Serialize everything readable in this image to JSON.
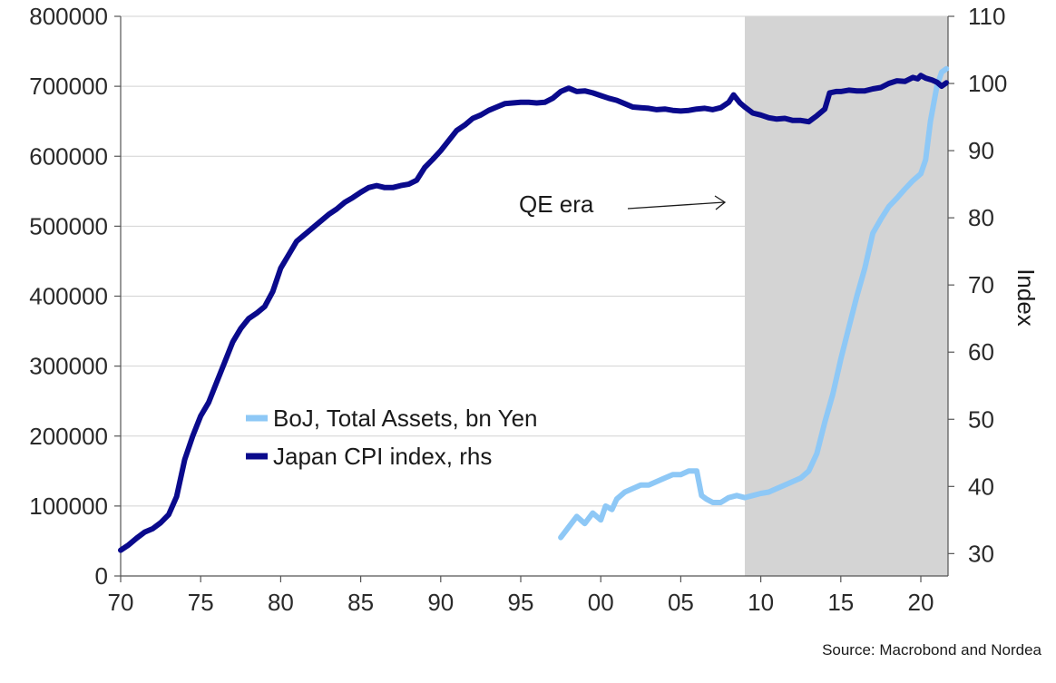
{
  "chart_data": {
    "type": "line",
    "title": "",
    "xlabel": "",
    "ylabel_left": "",
    "ylabel_right": "Index",
    "xlim": [
      1970,
      2021.7
    ],
    "ylim_left": [
      0,
      800000
    ],
    "ylim_right": [
      26.67,
      110
    ],
    "x_ticks": [
      1970,
      1975,
      1980,
      1985,
      1990,
      1995,
      2000,
      2005,
      2010,
      2015,
      2020
    ],
    "x_tick_labels": [
      "70",
      "75",
      "80",
      "85",
      "90",
      "95",
      "00",
      "05",
      "10",
      "15",
      "20"
    ],
    "y_left_ticks": [
      0,
      100000,
      200000,
      300000,
      400000,
      500000,
      600000,
      700000,
      800000
    ],
    "y_left_tick_labels": [
      "0",
      "100000",
      "200000",
      "300000",
      "400000",
      "500000",
      "600000",
      "700000",
      "800000"
    ],
    "y_right_ticks": [
      30,
      40,
      50,
      60,
      70,
      80,
      90,
      100,
      110
    ],
    "y_right_tick_labels": [
      "30",
      "40",
      "50",
      "60",
      "70",
      "80",
      "90",
      "100",
      "110"
    ],
    "grid": true,
    "legend_position": "center-left",
    "shaded_region": {
      "x": [
        2009,
        2021.7
      ],
      "color": "#d4d4d4"
    },
    "annotations": [
      {
        "text": "QE era",
        "arrow_to": "shaded_region_start"
      }
    ],
    "series": [
      {
        "name": "BoJ, Total Assets, bn Yen",
        "axis": "left",
        "color": "#8ec8f6",
        "x": [
          1997.5,
          1998,
          1998.5,
          1999,
          1999.5,
          2000,
          2000.3,
          2000.7,
          2001,
          2001.5,
          2002,
          2002.5,
          2003,
          2003.5,
          2004,
          2004.5,
          2005,
          2005.5,
          2006,
          2006.3,
          2006.6,
          2007,
          2007.5,
          2008,
          2008.5,
          2009,
          2009.5,
          2010,
          2010.5,
          2011,
          2011.5,
          2012,
          2012.5,
          2013,
          2013.5,
          2014,
          2014.5,
          2015,
          2015.5,
          2016,
          2016.5,
          2017,
          2017.5,
          2018,
          2018.5,
          2019,
          2019.5,
          2020,
          2020.3,
          2020.6,
          2021,
          2021.3,
          2021.6
        ],
        "values": [
          55000,
          70000,
          85000,
          75000,
          90000,
          80000,
          100000,
          95000,
          110000,
          120000,
          125000,
          130000,
          130000,
          135000,
          140000,
          145000,
          145000,
          150000,
          150000,
          115000,
          110000,
          105000,
          105000,
          112000,
          115000,
          112000,
          115000,
          118000,
          120000,
          125000,
          130000,
          135000,
          140000,
          150000,
          175000,
          220000,
          260000,
          310000,
          355000,
          400000,
          440000,
          490000,
          510000,
          528000,
          540000,
          553000,
          565000,
          575000,
          595000,
          650000,
          700000,
          720000,
          725000
        ]
      },
      {
        "name": "Japan CPI index, rhs",
        "axis": "right",
        "color": "#0a0a8c",
        "x": [
          1970,
          1970.5,
          1971,
          1971.5,
          1972,
          1972.5,
          1973,
          1973.5,
          1974,
          1974.5,
          1975,
          1975.5,
          1976,
          1976.5,
          1977,
          1977.5,
          1978,
          1978.5,
          1979,
          1979.5,
          1980,
          1980.5,
          1981,
          1981.5,
          1982,
          1982.5,
          1983,
          1983.5,
          1984,
          1984.5,
          1985,
          1985.5,
          1986,
          1986.5,
          1987,
          1987.5,
          1988,
          1988.5,
          1989,
          1989.5,
          1990,
          1990.5,
          1991,
          1991.5,
          1992,
          1992.5,
          1993,
          1993.5,
          1994,
          1994.5,
          1995,
          1995.5,
          1996,
          1996.5,
          1997,
          1997.5,
          1998,
          1998.5,
          1999,
          1999.5,
          2000,
          2000.5,
          2001,
          2001.5,
          2002,
          2002.5,
          2003,
          2003.5,
          2004,
          2004.5,
          2005,
          2005.5,
          2006,
          2006.5,
          2007,
          2007.5,
          2008,
          2008.3,
          2008.7,
          2009,
          2009.5,
          2010,
          2010.5,
          2011,
          2011.5,
          2012,
          2012.5,
          2013,
          2013.5,
          2014,
          2014.3,
          2014.7,
          2015,
          2015.5,
          2016,
          2016.5,
          2017,
          2017.5,
          2018,
          2018.5,
          2019,
          2019.5,
          2019.8,
          2020,
          2020.3,
          2020.7,
          2021,
          2021.3,
          2021.6
        ],
        "values": [
          30.5,
          31.3,
          32.3,
          33.2,
          33.7,
          34.6,
          35.8,
          38.5,
          44,
          47.5,
          50.5,
          52.5,
          55.5,
          58.5,
          61.5,
          63.5,
          65,
          65.8,
          66.8,
          69,
          72.5,
          74.5,
          76.5,
          77.5,
          78.5,
          79.5,
          80.5,
          81.3,
          82.3,
          83,
          83.8,
          84.5,
          84.8,
          84.5,
          84.5,
          84.8,
          85,
          85.6,
          87.5,
          88.7,
          90,
          91.5,
          93,
          93.8,
          94.8,
          95.3,
          96,
          96.5,
          97,
          97.1,
          97.2,
          97.2,
          97.1,
          97.2,
          97.8,
          98.8,
          99.3,
          98.8,
          98.9,
          98.6,
          98.2,
          97.8,
          97.5,
          97,
          96.5,
          96.4,
          96.3,
          96.1,
          96.2,
          96,
          95.9,
          96,
          96.2,
          96.3,
          96.1,
          96.4,
          97.2,
          98.3,
          97.1,
          96.5,
          95.6,
          95.3,
          94.9,
          94.7,
          94.8,
          94.5,
          94.5,
          94.3,
          95.2,
          96.2,
          98.6,
          98.8,
          98.8,
          99,
          98.9,
          98.9,
          99.2,
          99.4,
          100,
          100.4,
          100.3,
          100.9,
          100.7,
          101.2,
          100.8,
          100.5,
          100.2,
          99.6,
          100.1
        ]
      }
    ]
  },
  "legend": {
    "items": [
      {
        "label": "BoJ, Total Assets, bn Yen",
        "color": "#8ec8f6"
      },
      {
        "label": "Japan CPI index, rhs",
        "color": "#0a0a8c"
      }
    ]
  },
  "annotation_label": "QE era",
  "right_axis_label": "Index",
  "source": "Source: Macrobond and Nordea"
}
